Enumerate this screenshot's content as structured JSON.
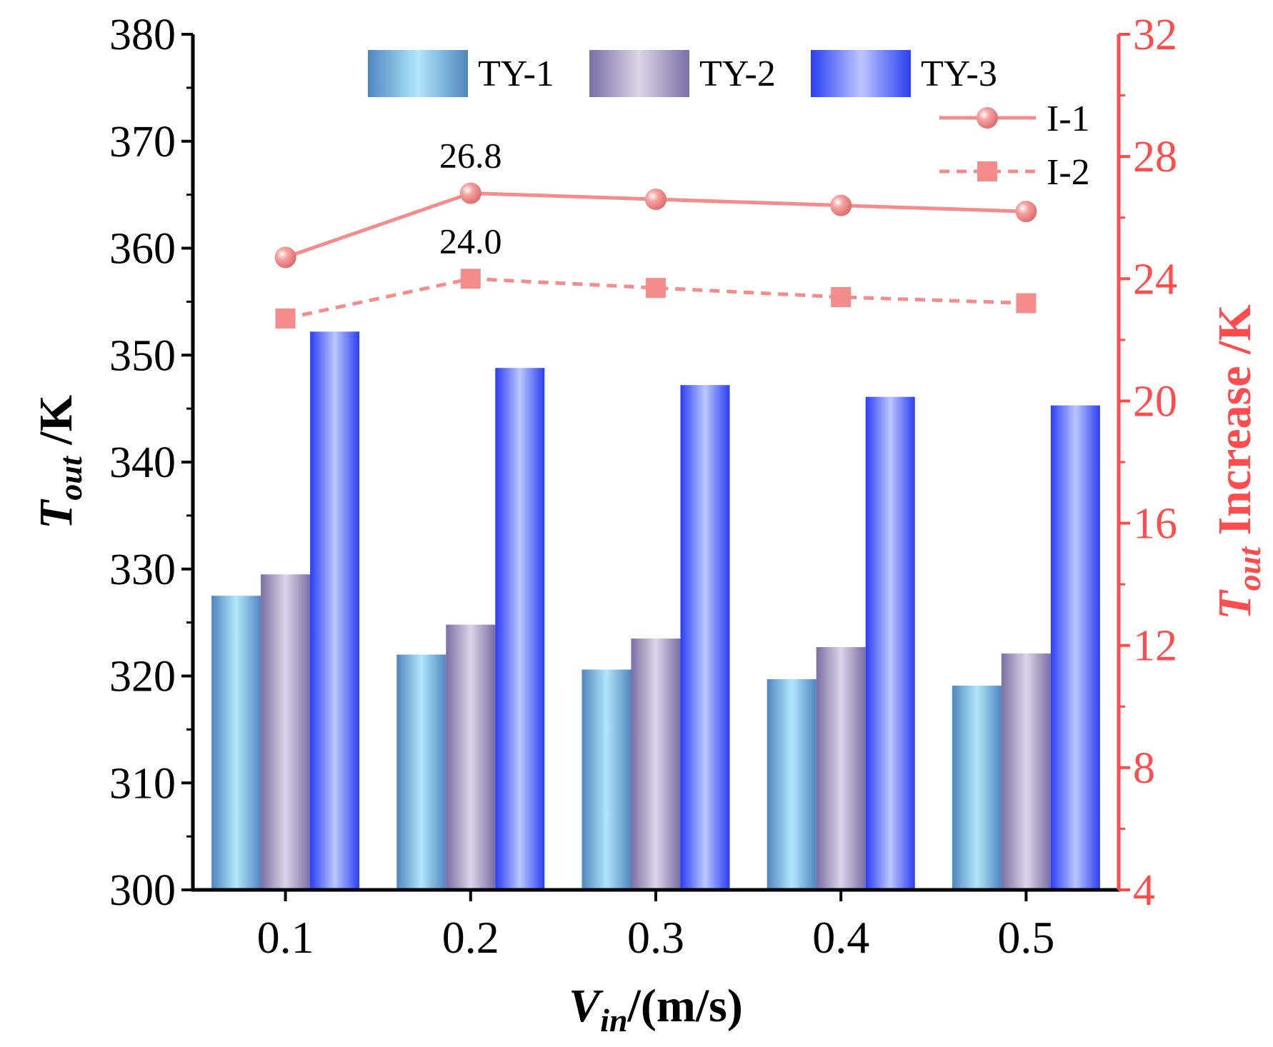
{
  "chart_data": {
    "type": "bar",
    "title": "",
    "xlabel": {
      "main": "V",
      "sub": "in",
      "rest": "/(m/s)"
    },
    "ylabel_left": {
      "main": "T",
      "sub": "out",
      "rest": " /K"
    },
    "ylabel_right": {
      "main": "T",
      "sub": "out",
      "rest": " Increase /K"
    },
    "categories": [
      "0.1",
      "0.2",
      "0.3",
      "0.4",
      "0.5"
    ],
    "ylim_left": [
      300,
      380
    ],
    "yticks_left": [
      "300",
      "310",
      "320",
      "330",
      "340",
      "350",
      "360",
      "370",
      "380"
    ],
    "ylim_right": [
      4,
      32
    ],
    "yticks_right": [
      "4",
      "8",
      "12",
      "16",
      "20",
      "24",
      "28",
      "32"
    ],
    "bar_series": [
      {
        "name": "TY-1",
        "values": [
          327.5,
          322.0,
          320.6,
          319.7,
          319.1
        ]
      },
      {
        "name": "TY-2",
        "values": [
          329.5,
          324.8,
          323.5,
          322.7,
          322.1
        ]
      },
      {
        "name": "TY-3",
        "values": [
          352.2,
          348.8,
          347.2,
          346.1,
          345.3
        ]
      }
    ],
    "line_series": [
      {
        "name": "I-1",
        "axis": "right",
        "style": "solid",
        "marker": "circle",
        "values": [
          24.7,
          26.8,
          26.6,
          26.4,
          26.2
        ]
      },
      {
        "name": "I-2",
        "axis": "right",
        "style": "dashed",
        "marker": "square",
        "values": [
          22.7,
          24.0,
          23.7,
          23.4,
          23.2
        ]
      }
    ],
    "annotations": [
      {
        "text": "26.8",
        "series": "I-1",
        "category": "0.2"
      },
      {
        "text": "24.0",
        "series": "I-2",
        "category": "0.2"
      }
    ],
    "legend_position": "top",
    "colors": {
      "ty1_edge": "#4f86c0",
      "ty1_mid": "#b2e6fb",
      "ty2_edge": "#7a6ea6",
      "ty2_mid": "#dcd5e6",
      "ty3_edge": "#2a3ef0",
      "ty3_mid": "#bcc6ff",
      "line": "#f58c8c",
      "right_axis": "#ff4d4d"
    }
  }
}
